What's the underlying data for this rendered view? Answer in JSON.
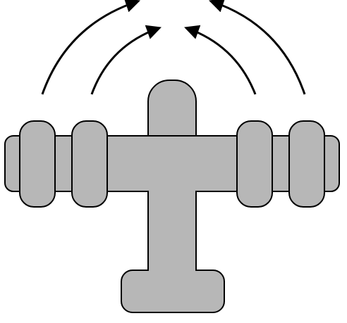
{
  "diagram": {
    "subject": "aircraft-icon",
    "colors": {
      "aircraft_fill": "#b7b7b7",
      "outline": "#000000",
      "arrow": "#000000",
      "background": "#ffffff"
    },
    "engines_per_wing": 2,
    "arrow_count": 4
  }
}
